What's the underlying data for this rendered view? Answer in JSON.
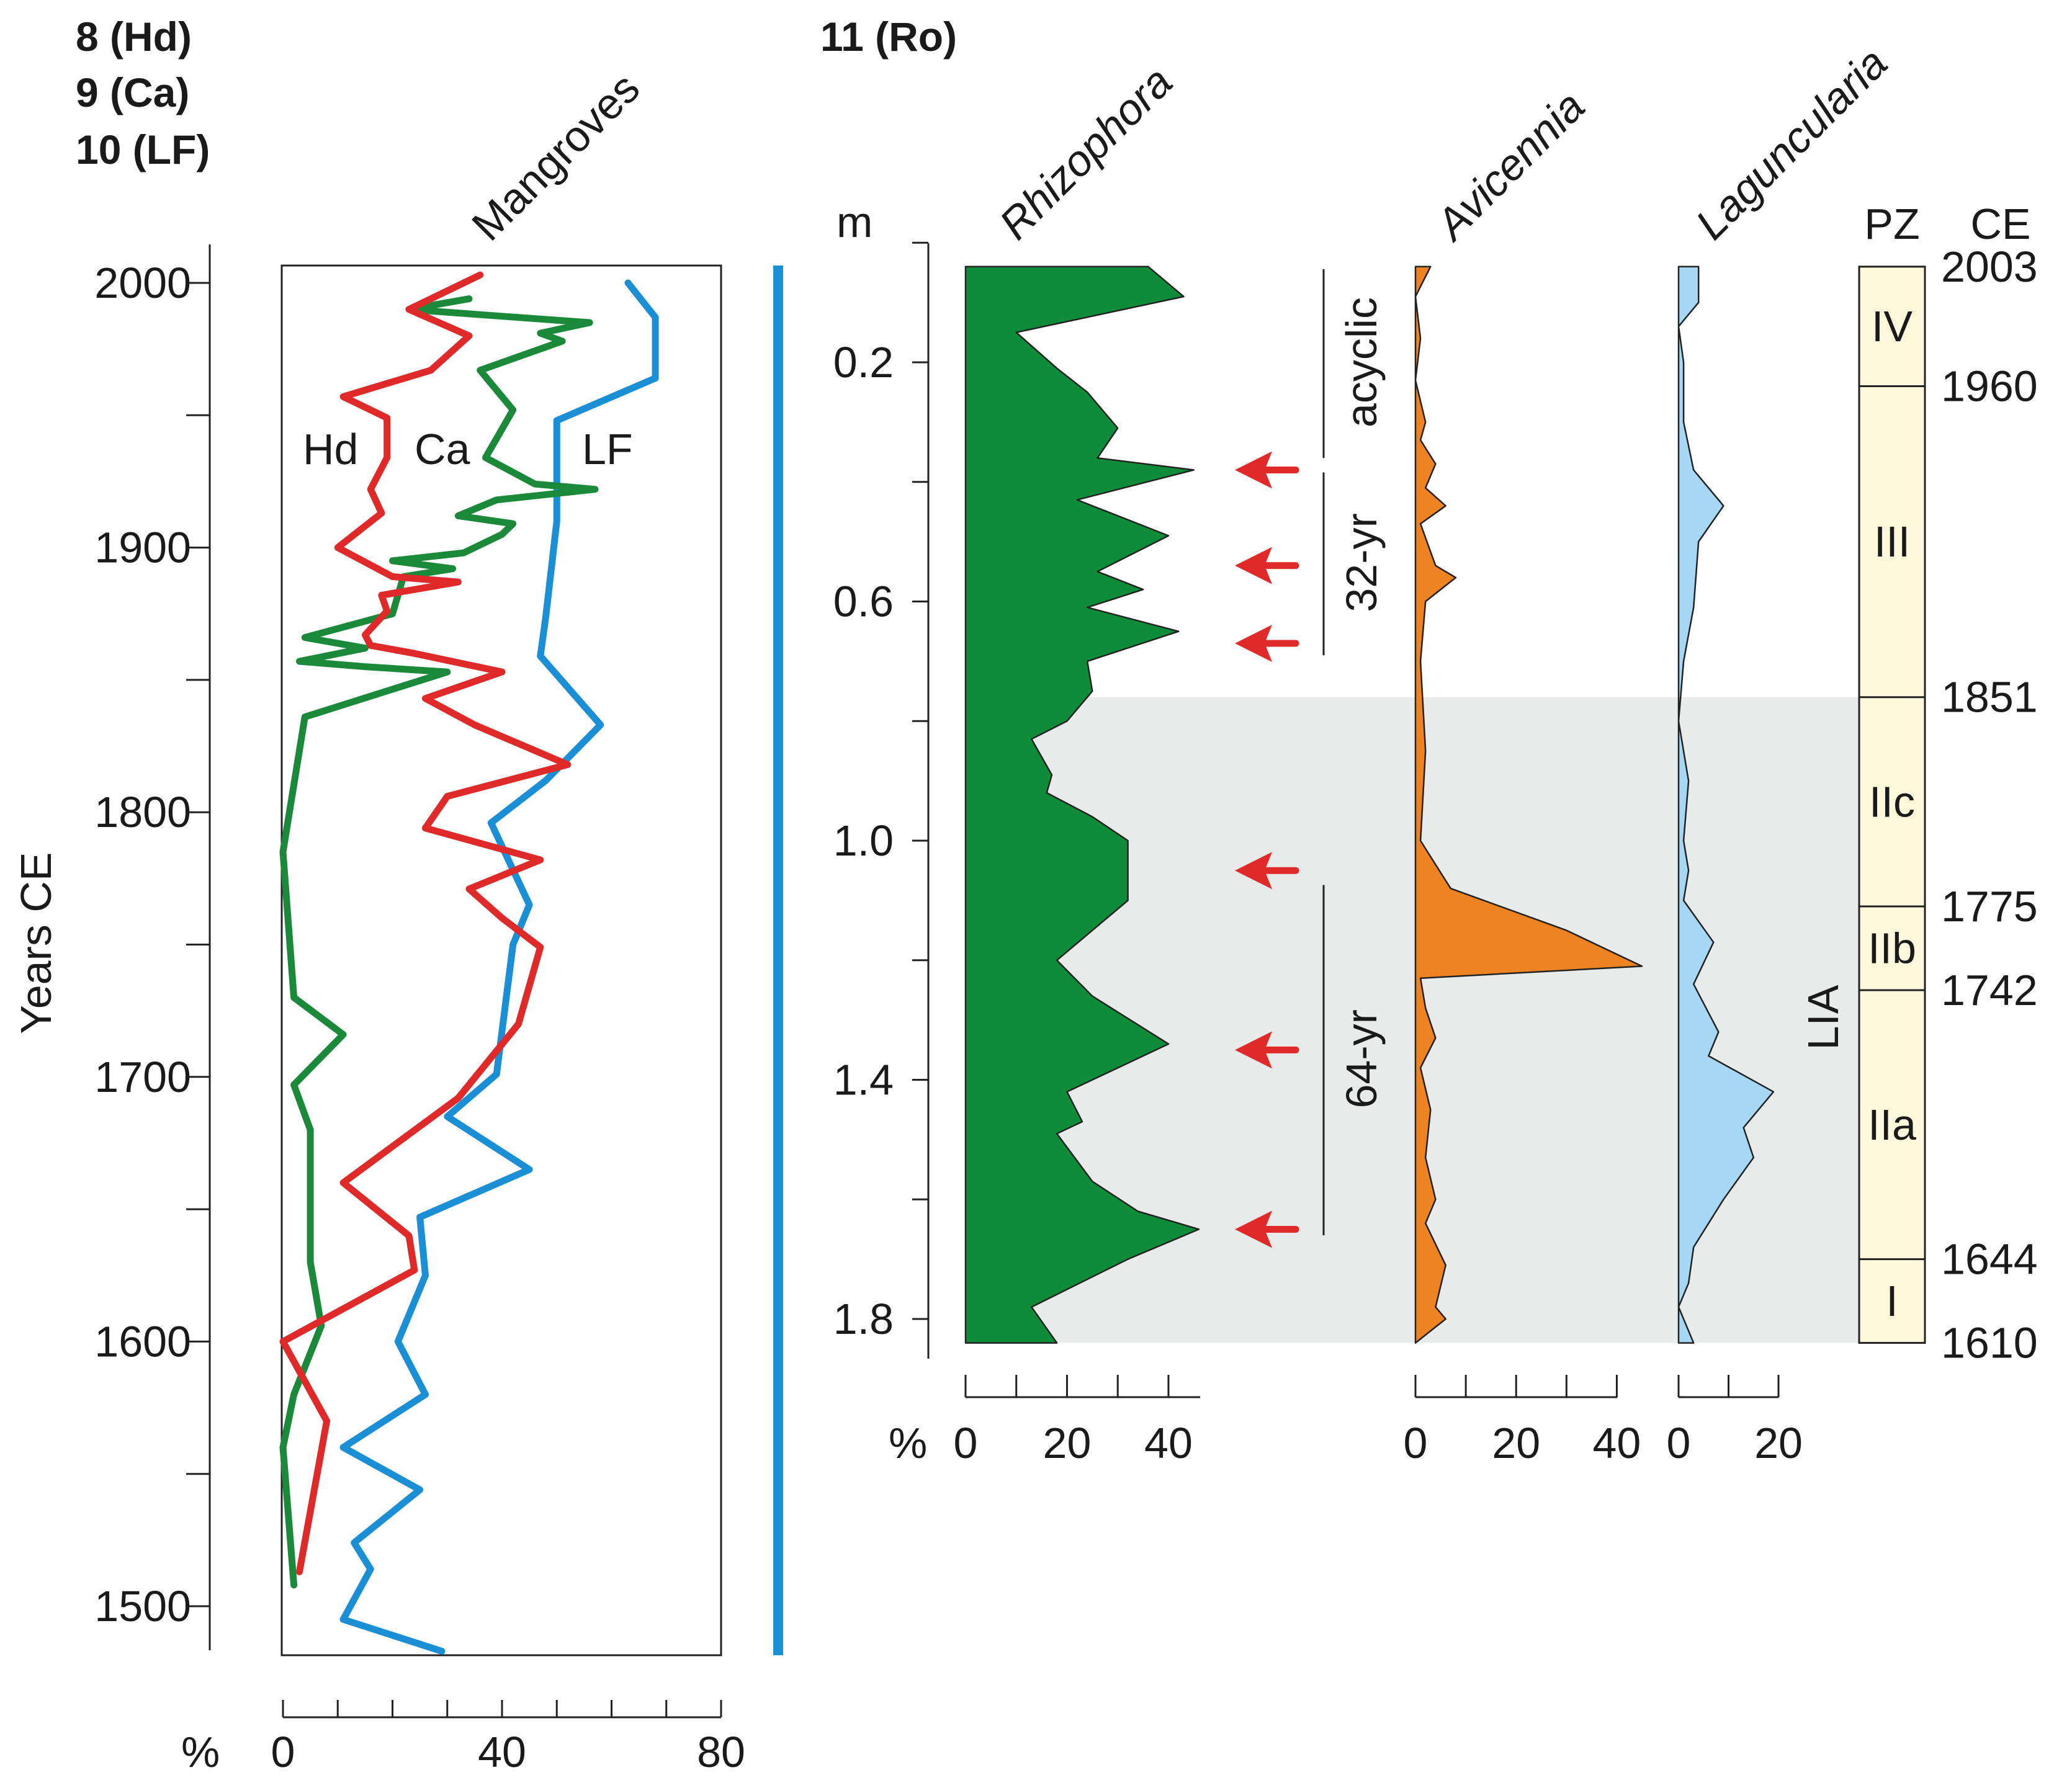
{
  "chart_data": [
    {
      "type": "line",
      "panel": "left",
      "header_labels": [
        "8 (Hd)",
        "9 (Ca)",
        "10 (LF)"
      ],
      "title": "Mangroves",
      "ylabel": "Years CE",
      "xlabel": "%",
      "xlim": [
        0,
        80
      ],
      "ylim": [
        1480,
        2005
      ],
      "y_ticks": [
        1500,
        1600,
        1700,
        1800,
        1900,
        2000
      ],
      "x_ticks": [
        0,
        40,
        80
      ],
      "series": [
        {
          "name": "Hd",
          "label": "Hd",
          "color": "#e02a2a",
          "points": [
            [
              36,
              2003
            ],
            [
              23,
              1990
            ],
            [
              34,
              1980
            ],
            [
              27,
              1967
            ],
            [
              11,
              1957
            ],
            [
              19,
              1949
            ],
            [
              19,
              1934
            ],
            [
              16,
              1922
            ],
            [
              18,
              1913
            ],
            [
              10,
              1900
            ],
            [
              20,
              1889
            ],
            [
              32,
              1887
            ],
            [
              18,
              1882
            ],
            [
              19,
              1876
            ],
            [
              15,
              1867
            ],
            [
              16,
              1863
            ],
            [
              24,
              1860
            ],
            [
              40,
              1853
            ],
            [
              26,
              1843
            ],
            [
              35,
              1833
            ],
            [
              52,
              1818
            ],
            [
              30,
              1806
            ],
            [
              26,
              1794
            ],
            [
              47,
              1782
            ],
            [
              34,
              1771
            ],
            [
              40,
              1760
            ],
            [
              47,
              1749
            ],
            [
              43,
              1720
            ],
            [
              32,
              1692
            ],
            [
              11,
              1660
            ],
            [
              23,
              1640
            ],
            [
              24,
              1627
            ],
            [
              0,
              1600
            ],
            [
              8,
              1570
            ],
            [
              3,
              1513
            ]
          ]
        },
        {
          "name": "Ca",
          "label": "Ca",
          "color": "#1a8a3a",
          "points": [
            [
              34,
              1994
            ],
            [
              23,
              1990
            ],
            [
              36,
              1988
            ],
            [
              56,
              1985
            ],
            [
              47,
              1981
            ],
            [
              51,
              1978
            ],
            [
              36,
              1967
            ],
            [
              42,
              1952
            ],
            [
              37,
              1934
            ],
            [
              46,
              1924
            ],
            [
              57,
              1922
            ],
            [
              39,
              1918
            ],
            [
              32,
              1912
            ],
            [
              42,
              1909
            ],
            [
              40,
              1905
            ],
            [
              33,
              1898
            ],
            [
              20,
              1895
            ],
            [
              31,
              1892
            ],
            [
              22,
              1889
            ],
            [
              20,
              1875
            ],
            [
              4,
              1866
            ],
            [
              15,
              1862
            ],
            [
              3,
              1857
            ],
            [
              15,
              1855
            ],
            [
              30,
              1853
            ],
            [
              4,
              1836
            ],
            [
              0,
              1785
            ],
            [
              2,
              1730
            ],
            [
              11,
              1716
            ],
            [
              2,
              1697
            ],
            [
              5,
              1680
            ],
            [
              5,
              1630
            ],
            [
              7,
              1606
            ],
            [
              2,
              1580
            ],
            [
              0,
              1560
            ],
            [
              2,
              1508
            ]
          ]
        },
        {
          "name": "LF",
          "label": "LF",
          "color": "#1a8fd6",
          "points": [
            [
              63,
              2000
            ],
            [
              68,
              1987
            ],
            [
              68,
              1964
            ],
            [
              50,
              1948
            ],
            [
              50,
              1910
            ],
            [
              48,
              1874
            ],
            [
              47,
              1859
            ],
            [
              58,
              1833
            ],
            [
              48,
              1812
            ],
            [
              38,
              1796
            ],
            [
              45,
              1765
            ],
            [
              42,
              1750
            ],
            [
              39,
              1701
            ],
            [
              30,
              1685
            ],
            [
              45,
              1665
            ],
            [
              25,
              1647
            ],
            [
              26,
              1625
            ],
            [
              21,
              1600
            ],
            [
              26,
              1580
            ],
            [
              11,
              1560
            ],
            [
              25,
              1544
            ],
            [
              13,
              1524
            ],
            [
              16,
              1514
            ],
            [
              11,
              1495
            ],
            [
              29,
              1483
            ]
          ]
        }
      ]
    },
    {
      "type": "area",
      "panel": "right",
      "header_label": "11 (Ro)",
      "depth_unit": "m",
      "ylim": [
        0.04,
        1.84
      ],
      "depth_ticks": [
        0.2,
        0.6,
        1.0,
        1.4,
        1.8
      ],
      "xlabel": "%",
      "series": [
        {
          "name": "Rhizophora",
          "color": "#0f8c39",
          "xmax": 46,
          "x_ticks": [
            0,
            20,
            40
          ],
          "points": [
            [
              36,
              0.04
            ],
            [
              43,
              0.09
            ],
            [
              10,
              0.15
            ],
            [
              18,
              0.21
            ],
            [
              24,
              0.25
            ],
            [
              30,
              0.31
            ],
            [
              26,
              0.36
            ],
            [
              45,
              0.38
            ],
            [
              22,
              0.43
            ],
            [
              40,
              0.49
            ],
            [
              26,
              0.55
            ],
            [
              35,
              0.58
            ],
            [
              24,
              0.61
            ],
            [
              42,
              0.65
            ],
            [
              24,
              0.7
            ],
            [
              25,
              0.75
            ],
            [
              20,
              0.8
            ],
            [
              13,
              0.83
            ],
            [
              17,
              0.89
            ],
            [
              16,
              0.92
            ],
            [
              25,
              0.96
            ],
            [
              32,
              1.0
            ],
            [
              32,
              1.1
            ],
            [
              18,
              1.2
            ],
            [
              25,
              1.26
            ],
            [
              40,
              1.34
            ],
            [
              20,
              1.42
            ],
            [
              23,
              1.47
            ],
            [
              18,
              1.49
            ],
            [
              25,
              1.57
            ],
            [
              34,
              1.62
            ],
            [
              46,
              1.65
            ],
            [
              32,
              1.7
            ],
            [
              13,
              1.78
            ],
            [
              18,
              1.84
            ]
          ]
        },
        {
          "name": "Avicennia",
          "color": "#ee8421",
          "xmax": 45,
          "x_ticks": [
            0,
            20,
            40
          ],
          "points": [
            [
              3,
              0.04
            ],
            [
              0,
              0.09
            ],
            [
              1,
              0.16
            ],
            [
              0,
              0.23
            ],
            [
              2,
              0.3
            ],
            [
              1,
              0.33
            ],
            [
              4,
              0.37
            ],
            [
              2,
              0.41
            ],
            [
              6,
              0.44
            ],
            [
              1,
              0.47
            ],
            [
              4,
              0.54
            ],
            [
              8,
              0.56
            ],
            [
              2,
              0.6
            ],
            [
              1,
              0.7
            ],
            [
              2,
              0.85
            ],
            [
              1,
              1.0
            ],
            [
              4,
              1.04
            ],
            [
              7,
              1.08
            ],
            [
              30,
              1.15
            ],
            [
              45,
              1.21
            ],
            [
              1,
              1.23
            ],
            [
              2,
              1.28
            ],
            [
              4,
              1.33
            ],
            [
              1,
              1.38
            ],
            [
              3,
              1.45
            ],
            [
              2,
              1.53
            ],
            [
              4,
              1.6
            ],
            [
              2,
              1.64
            ],
            [
              6,
              1.71
            ],
            [
              4,
              1.78
            ],
            [
              6,
              1.8
            ],
            [
              0,
              1.84
            ]
          ]
        },
        {
          "name": "Laguncularia",
          "color": "#a6d8f5",
          "xmax": 20,
          "x_ticks": [
            0,
            20
          ],
          "points": [
            [
              4,
              0.04
            ],
            [
              4,
              0.1
            ],
            [
              0,
              0.14
            ],
            [
              1,
              0.2
            ],
            [
              1,
              0.3
            ],
            [
              3,
              0.38
            ],
            [
              9,
              0.44
            ],
            [
              4,
              0.5
            ],
            [
              3,
              0.61
            ],
            [
              1,
              0.7
            ],
            [
              0,
              0.8
            ],
            [
              2,
              0.9
            ],
            [
              1,
              1.0
            ],
            [
              2,
              1.05
            ],
            [
              1,
              1.1
            ],
            [
              7,
              1.17
            ],
            [
              3,
              1.24
            ],
            [
              8,
              1.32
            ],
            [
              6,
              1.36
            ],
            [
              19,
              1.42
            ],
            [
              13,
              1.48
            ],
            [
              15,
              1.53
            ],
            [
              9,
              1.6
            ],
            [
              3,
              1.68
            ],
            [
              2,
              1.74
            ],
            [
              0,
              1.78
            ],
            [
              3,
              1.84
            ]
          ]
        }
      ],
      "annotations": {
        "shaded_range": [
          0.76,
          1.84
        ],
        "cycles": [
          {
            "label": "acyclic",
            "from": 0.04,
            "to": 0.36
          },
          {
            "label": "32-yr",
            "from": 0.38,
            "to": 0.69
          },
          {
            "label": "64-yr",
            "from": 1.07,
            "to": 1.66
          }
        ],
        "arrow_depths": [
          0.38,
          0.54,
          0.67,
          1.05,
          1.35,
          1.65
        ],
        "lia_label": "LIA"
      },
      "zones": {
        "header": "PZ",
        "boundaries": [
          0.04,
          0.24,
          0.76,
          1.11,
          1.25,
          1.7,
          1.84
        ],
        "names": [
          "IV",
          "III",
          "IIc",
          "IIb",
          "IIa",
          "I"
        ],
        "ce_header": "CE",
        "ce_dates": [
          "2003",
          "1960",
          "1851",
          "1775",
          "1742",
          "1644",
          "1610"
        ]
      }
    }
  ]
}
